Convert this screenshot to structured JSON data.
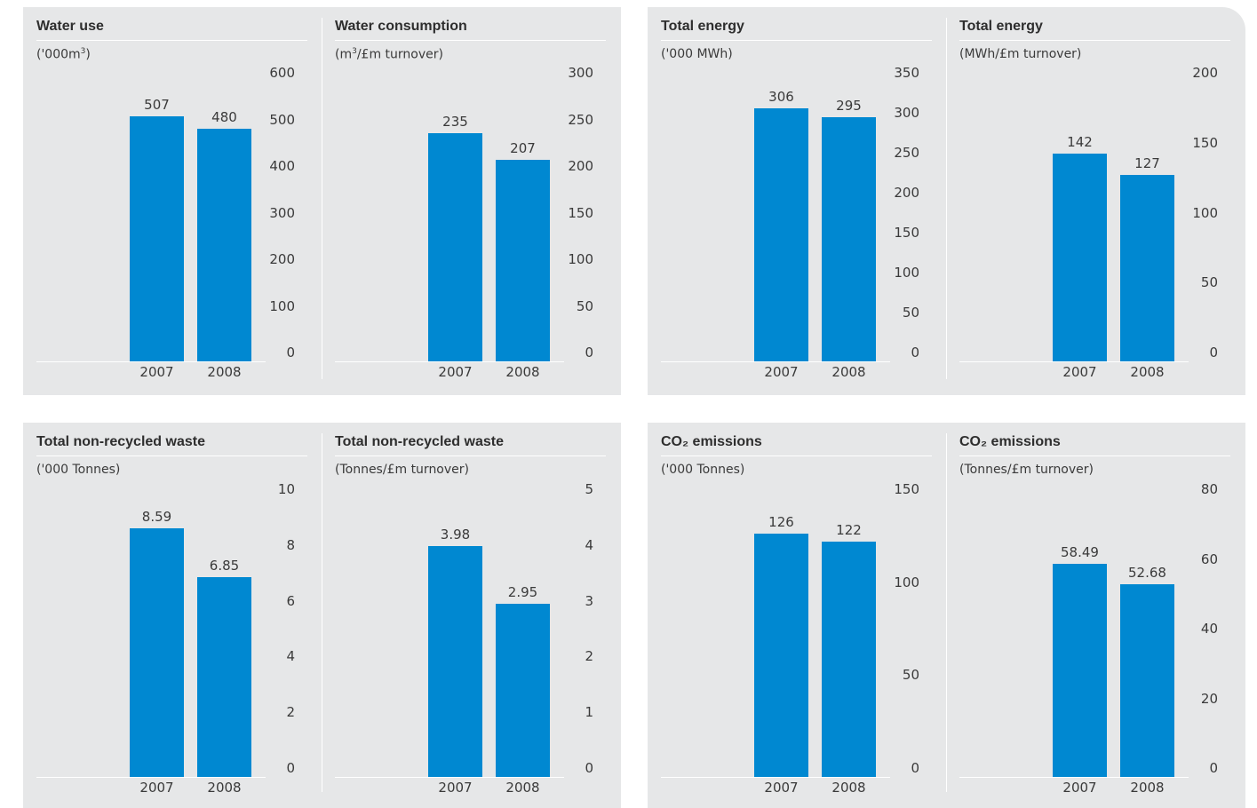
{
  "chart_data": [
    {
      "type": "bar",
      "title": "Water use",
      "unit": "('000m",
      "unit_sup": "3",
      "unit_after": ")",
      "categories": [
        "2007",
        "2008"
      ],
      "values": [
        507,
        480
      ],
      "value_labels": [
        "507",
        "480"
      ],
      "ylim": [
        0,
        600
      ],
      "ticks": [
        "600",
        "500",
        "400",
        "300",
        "200",
        "100",
        "0"
      ]
    },
    {
      "type": "bar",
      "title": "Water consumption",
      "unit": "(m",
      "unit_sup": "3",
      "unit_after": "/£m turnover)",
      "categories": [
        "2007",
        "2008"
      ],
      "values": [
        235,
        207
      ],
      "value_labels": [
        "235",
        "207"
      ],
      "ylim": [
        0,
        300
      ],
      "ticks": [
        "300",
        "250",
        "200",
        "150",
        "100",
        "50",
        "0"
      ]
    },
    {
      "type": "bar",
      "title": "Total energy",
      "unit": "('000 MWh)",
      "unit_sup": "",
      "unit_after": "",
      "categories": [
        "2007",
        "2008"
      ],
      "values": [
        306,
        295
      ],
      "value_labels": [
        "306",
        "295"
      ],
      "ylim": [
        0,
        350
      ],
      "ticks": [
        "350",
        "300",
        "250",
        "200",
        "150",
        "100",
        "50",
        "0"
      ]
    },
    {
      "type": "bar",
      "title": "Total energy",
      "unit": "(MWh/£m turnover)",
      "unit_sup": "",
      "unit_after": "",
      "categories": [
        "2007",
        "2008"
      ],
      "values": [
        142,
        127
      ],
      "value_labels": [
        "142",
        "127"
      ],
      "ylim": [
        0,
        200
      ],
      "ticks": [
        "200",
        "150",
        "100",
        "50",
        "0"
      ]
    },
    {
      "type": "bar",
      "title": "Total non-recycled waste",
      "unit": "('000 Tonnes)",
      "unit_sup": "",
      "unit_after": "",
      "categories": [
        "2007",
        "2008"
      ],
      "values": [
        8.59,
        6.85
      ],
      "value_labels": [
        "8.59",
        "6.85"
      ],
      "ylim": [
        0,
        10
      ],
      "ticks": [
        "10",
        "8",
        "6",
        "4",
        "2",
        "0"
      ]
    },
    {
      "type": "bar",
      "title": "Total non-recycled waste",
      "unit": "(Tonnes/£m turnover)",
      "unit_sup": "",
      "unit_after": "",
      "categories": [
        "2007",
        "2008"
      ],
      "values": [
        3.98,
        2.95
      ],
      "value_labels": [
        "3.98",
        "2.95"
      ],
      "ylim": [
        0,
        5
      ],
      "ticks": [
        "5",
        "4",
        "3",
        "2",
        "1",
        "0"
      ]
    },
    {
      "type": "bar",
      "title": "CO₂ emissions",
      "unit": "('000 Tonnes)",
      "unit_sup": "",
      "unit_after": "",
      "categories": [
        "2007",
        "2008"
      ],
      "values": [
        126,
        122
      ],
      "value_labels": [
        "126",
        "122"
      ],
      "ylim": [
        0,
        150
      ],
      "ticks": [
        "150",
        "100",
        "50",
        "0"
      ]
    },
    {
      "type": "bar",
      "title": "CO₂ emissions",
      "unit": "(Tonnes/£m turnover)",
      "unit_sup": "",
      "unit_after": "",
      "categories": [
        "2007",
        "2008"
      ],
      "values": [
        58.49,
        52.68
      ],
      "value_labels": [
        "58.49",
        "52.68"
      ],
      "ylim": [
        0,
        80
      ],
      "ticks": [
        "80",
        "60",
        "40",
        "20",
        "0"
      ]
    }
  ],
  "colors": {
    "bar": "#0088d1",
    "panel": "#e6e7e8"
  }
}
